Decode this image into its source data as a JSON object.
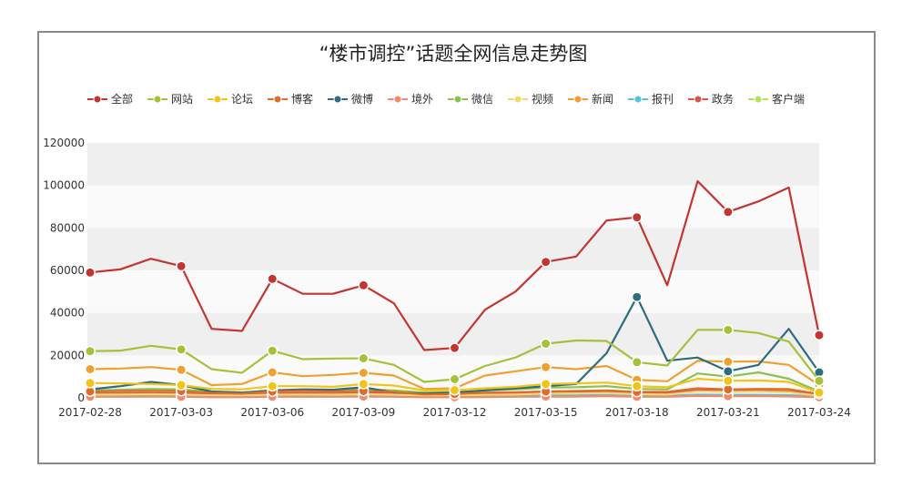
{
  "chart_data": {
    "type": "line",
    "title": "“楼市调控”话题全网信息走势图",
    "xlabel": "",
    "ylabel": "",
    "ylim": [
      0,
      120000
    ],
    "y_ticks": [
      "0",
      "20000",
      "40000",
      "60000",
      "80000",
      "100000",
      "120000"
    ],
    "x_tick_labels": [
      "2017-02-28",
      "2017-03-03",
      "2017-03-06",
      "2017-03-09",
      "2017-03-12",
      "2017-03-15",
      "2017-03-18",
      "2017-03-21",
      "2017-03-24"
    ],
    "x": [
      "2017-02-28",
      "2017-03-01",
      "2017-03-02",
      "2017-03-03",
      "2017-03-04",
      "2017-03-05",
      "2017-03-06",
      "2017-03-07",
      "2017-03-08",
      "2017-03-09",
      "2017-03-10",
      "2017-03-11",
      "2017-03-12",
      "2017-03-13",
      "2017-03-14",
      "2017-03-15",
      "2017-03-16",
      "2017-03-17",
      "2017-03-18",
      "2017-03-19",
      "2017-03-20",
      "2017-03-21",
      "2017-03-22",
      "2017-03-23",
      "2017-03-24"
    ],
    "grid": "horizontal alternating bands",
    "legend_position": "top",
    "series": [
      {
        "name": "全部",
        "color": "#c23531",
        "values": [
          59000,
          60500,
          65500,
          62000,
          32500,
          31500,
          56000,
          49000,
          49000,
          53000,
          44500,
          22500,
          23500,
          41500,
          50000,
          64000,
          66500,
          83500,
          85000,
          53000,
          102000,
          87500,
          92500,
          99000,
          29500
        ]
      },
      {
        "name": "网站",
        "color": "#a4c13a",
        "values": [
          22000,
          22200,
          24500,
          22800,
          13500,
          11800,
          22200,
          18200,
          18500,
          18600,
          15500,
          7500,
          8800,
          15000,
          19000,
          25500,
          27000,
          26800,
          16800,
          15200,
          32000,
          32000,
          30500,
          26500,
          8000
        ]
      },
      {
        "name": "论坛",
        "color": "#f0c419",
        "values": [
          7000,
          6800,
          6500,
          6000,
          4200,
          4000,
          5500,
          5500,
          5200,
          6500,
          5800,
          3500,
          3600,
          4500,
          5200,
          6500,
          6800,
          7200,
          5500,
          5000,
          9000,
          8000,
          8200,
          7500,
          2500
        ]
      },
      {
        "name": "博客",
        "color": "#e06c2a",
        "values": [
          3000,
          3200,
          3300,
          3200,
          2300,
          2000,
          3000,
          3200,
          3000,
          3200,
          2800,
          1600,
          1800,
          2500,
          2600,
          3000,
          3200,
          3500,
          2800,
          2800,
          4500,
          4000,
          4200,
          4100,
          1800
        ]
      },
      {
        "name": "微博",
        "color": "#2b6c7f",
        "values": [
          4000,
          5500,
          7500,
          6000,
          3000,
          2500,
          3500,
          4000,
          3800,
          5000,
          2500,
          2000,
          2500,
          3500,
          4500,
          5500,
          6500,
          21000,
          47500,
          17500,
          19000,
          12500,
          15500,
          32500,
          12000
        ]
      },
      {
        "name": "境外",
        "color": "#f08a6e",
        "values": [
          500,
          500,
          600,
          500,
          300,
          300,
          500,
          500,
          500,
          600,
          500,
          300,
          300,
          400,
          500,
          600,
          600,
          800,
          500,
          500,
          900,
          800,
          800,
          700,
          300
        ]
      },
      {
        "name": "微信",
        "color": "#8cc152",
        "values": [
          3500,
          3800,
          4200,
          4000,
          2800,
          2500,
          3500,
          3800,
          3600,
          4000,
          3500,
          2500,
          2600,
          3500,
          4000,
          4800,
          5000,
          5500,
          4200,
          4000,
          11500,
          10000,
          12000,
          9000,
          3000
        ]
      },
      {
        "name": "视频",
        "color": "#f5d76e",
        "values": [
          1500,
          1600,
          1700,
          1600,
          1200,
          1100,
          1500,
          1600,
          1500,
          1700,
          1500,
          1000,
          1100,
          1400,
          1600,
          2000,
          2100,
          2300,
          1700,
          1600,
          3000,
          2800,
          2900,
          2600,
          1000
        ]
      },
      {
        "name": "新闻",
        "color": "#f0a030",
        "values": [
          13500,
          13800,
          14500,
          13200,
          6000,
          6500,
          12000,
          10200,
          10800,
          11800,
          10500,
          4200,
          4500,
          10500,
          12500,
          14500,
          13500,
          15000,
          8500,
          7800,
          17500,
          17000,
          17200,
          15500,
          6000
        ]
      },
      {
        "name": "报刊",
        "color": "#5bc0de",
        "values": [
          1000,
          1000,
          1100,
          1000,
          800,
          700,
          1000,
          1000,
          1000,
          1100,
          1000,
          600,
          700,
          900,
          1000,
          1200,
          1200,
          1300,
          1000,
          1000,
          1500,
          1400,
          1400,
          1300,
          600
        ]
      },
      {
        "name": "政务",
        "color": "#d9534f",
        "values": [
          2000,
          2100,
          2200,
          2100,
          1500,
          1400,
          2000,
          2100,
          2000,
          2200,
          2000,
          1300,
          1400,
          1800,
          2000,
          2400,
          2500,
          2700,
          2100,
          2000,
          3500,
          3200,
          3300,
          3000,
          1400
        ]
      },
      {
        "name": "客户端",
        "color": "#b5e061",
        "values": [
          2500,
          2600,
          2700,
          2600,
          1800,
          1700,
          2500,
          2600,
          2500,
          2700,
          2400,
          1500,
          1600,
          2200,
          2500,
          3000,
          3100,
          3300,
          2500,
          2400,
          4200,
          3900,
          4000,
          3700,
          1500
        ]
      }
    ]
  }
}
